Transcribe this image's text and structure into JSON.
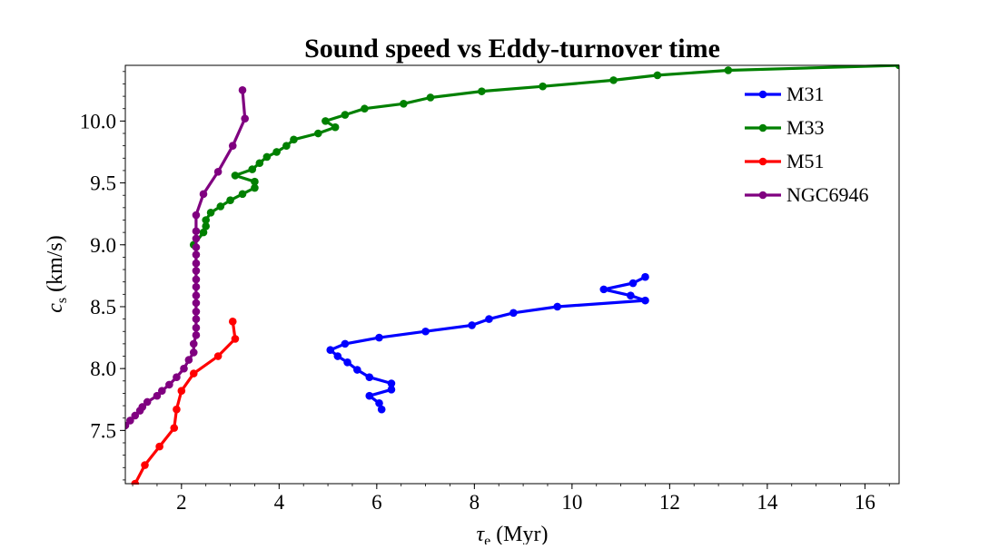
{
  "chart_data": {
    "type": "line",
    "title": "Sound speed vs Eddy-turnover time",
    "xlabel": {
      "symbol": "τ",
      "subscript": "e",
      "unit": " (Myr)"
    },
    "ylabel": {
      "symbol": "c",
      "subscript": "s",
      "unit": " (km/s)"
    },
    "xlim": [
      0.85,
      16.7
    ],
    "ylim": [
      7.07,
      10.45
    ],
    "xticks": [
      2,
      4,
      6,
      8,
      10,
      12,
      14,
      16
    ],
    "xtick_labels": [
      "2",
      "4",
      "6",
      "8",
      "10",
      "12",
      "14",
      "16"
    ],
    "yticks": [
      7.5,
      8.0,
      8.5,
      9.0,
      9.5,
      10.0
    ],
    "ytick_labels": [
      "7.5",
      "8.0",
      "8.5",
      "9.0",
      "9.5",
      "10.0"
    ],
    "x_minor_step": 0.5,
    "y_minor_step": 0.1,
    "grid": false,
    "legend_position": "top-right",
    "series": [
      {
        "name": "M31",
        "color": "#0000ff",
        "points": [
          [
            6.1,
            7.67
          ],
          [
            6.05,
            7.72
          ],
          [
            5.85,
            7.78
          ],
          [
            6.3,
            7.83
          ],
          [
            6.3,
            7.88
          ],
          [
            5.85,
            7.93
          ],
          [
            5.6,
            7.99
          ],
          [
            5.4,
            8.05
          ],
          [
            5.2,
            8.1
          ],
          [
            5.05,
            8.15
          ],
          [
            5.35,
            8.2
          ],
          [
            6.05,
            8.25
          ],
          [
            7.0,
            8.3
          ],
          [
            7.95,
            8.35
          ],
          [
            8.3,
            8.4
          ],
          [
            8.8,
            8.45
          ],
          [
            9.7,
            8.5
          ],
          [
            11.5,
            8.55
          ],
          [
            11.2,
            8.59
          ],
          [
            10.65,
            8.64
          ],
          [
            11.25,
            8.69
          ],
          [
            11.5,
            8.74
          ]
        ]
      },
      {
        "name": "M33",
        "color": "#008000",
        "points": [
          [
            2.25,
            9.0
          ],
          [
            2.45,
            9.1
          ],
          [
            2.5,
            9.15
          ],
          [
            2.5,
            9.2
          ],
          [
            2.6,
            9.26
          ],
          [
            2.8,
            9.31
          ],
          [
            3.0,
            9.36
          ],
          [
            3.25,
            9.41
          ],
          [
            3.5,
            9.46
          ],
          [
            3.5,
            9.51
          ],
          [
            3.1,
            9.56
          ],
          [
            3.45,
            9.61
          ],
          [
            3.6,
            9.66
          ],
          [
            3.75,
            9.71
          ],
          [
            3.95,
            9.75
          ],
          [
            4.15,
            9.8
          ],
          [
            4.3,
            9.85
          ],
          [
            4.8,
            9.9
          ],
          [
            5.15,
            9.95
          ],
          [
            4.95,
            10.0
          ],
          [
            5.35,
            10.05
          ],
          [
            5.75,
            10.1
          ],
          [
            6.55,
            10.14
          ],
          [
            7.1,
            10.19
          ],
          [
            8.15,
            10.24
          ],
          [
            9.4,
            10.28
          ],
          [
            10.85,
            10.33
          ],
          [
            11.75,
            10.37
          ],
          [
            13.2,
            10.41
          ],
          [
            16.7,
            10.45
          ]
        ]
      },
      {
        "name": "M51",
        "color": "#ff0000",
        "points": [
          [
            1.05,
            7.07
          ],
          [
            1.25,
            7.22
          ],
          [
            1.55,
            7.37
          ],
          [
            1.85,
            7.52
          ],
          [
            1.9,
            7.67
          ],
          [
            2.0,
            7.82
          ],
          [
            2.25,
            7.96
          ],
          [
            2.75,
            8.1
          ],
          [
            3.1,
            8.24
          ],
          [
            3.05,
            8.38
          ]
        ]
      },
      {
        "name": "NGC6946",
        "color": "#800080",
        "points": [
          [
            0.85,
            7.54
          ],
          [
            0.95,
            7.58
          ],
          [
            1.05,
            7.62
          ],
          [
            1.15,
            7.66
          ],
          [
            1.2,
            7.69
          ],
          [
            1.3,
            7.73
          ],
          [
            1.5,
            7.78
          ],
          [
            1.6,
            7.82
          ],
          [
            1.75,
            7.87
          ],
          [
            1.9,
            7.93
          ],
          [
            2.05,
            8.0
          ],
          [
            2.15,
            8.07
          ],
          [
            2.25,
            8.13
          ],
          [
            2.25,
            8.2
          ],
          [
            2.3,
            8.27
          ],
          [
            2.3,
            8.33
          ],
          [
            2.3,
            8.4
          ],
          [
            2.3,
            8.46
          ],
          [
            2.3,
            8.53
          ],
          [
            2.3,
            8.59
          ],
          [
            2.3,
            8.66
          ],
          [
            2.3,
            8.72
          ],
          [
            2.3,
            8.79
          ],
          [
            2.3,
            8.85
          ],
          [
            2.3,
            8.92
          ],
          [
            2.3,
            8.98
          ],
          [
            2.3,
            9.05
          ],
          [
            2.3,
            9.11
          ],
          [
            2.3,
            9.24
          ],
          [
            2.45,
            9.41
          ],
          [
            2.75,
            9.59
          ],
          [
            3.05,
            9.8
          ],
          [
            3.3,
            10.02
          ],
          [
            3.25,
            10.25
          ]
        ]
      }
    ]
  }
}
